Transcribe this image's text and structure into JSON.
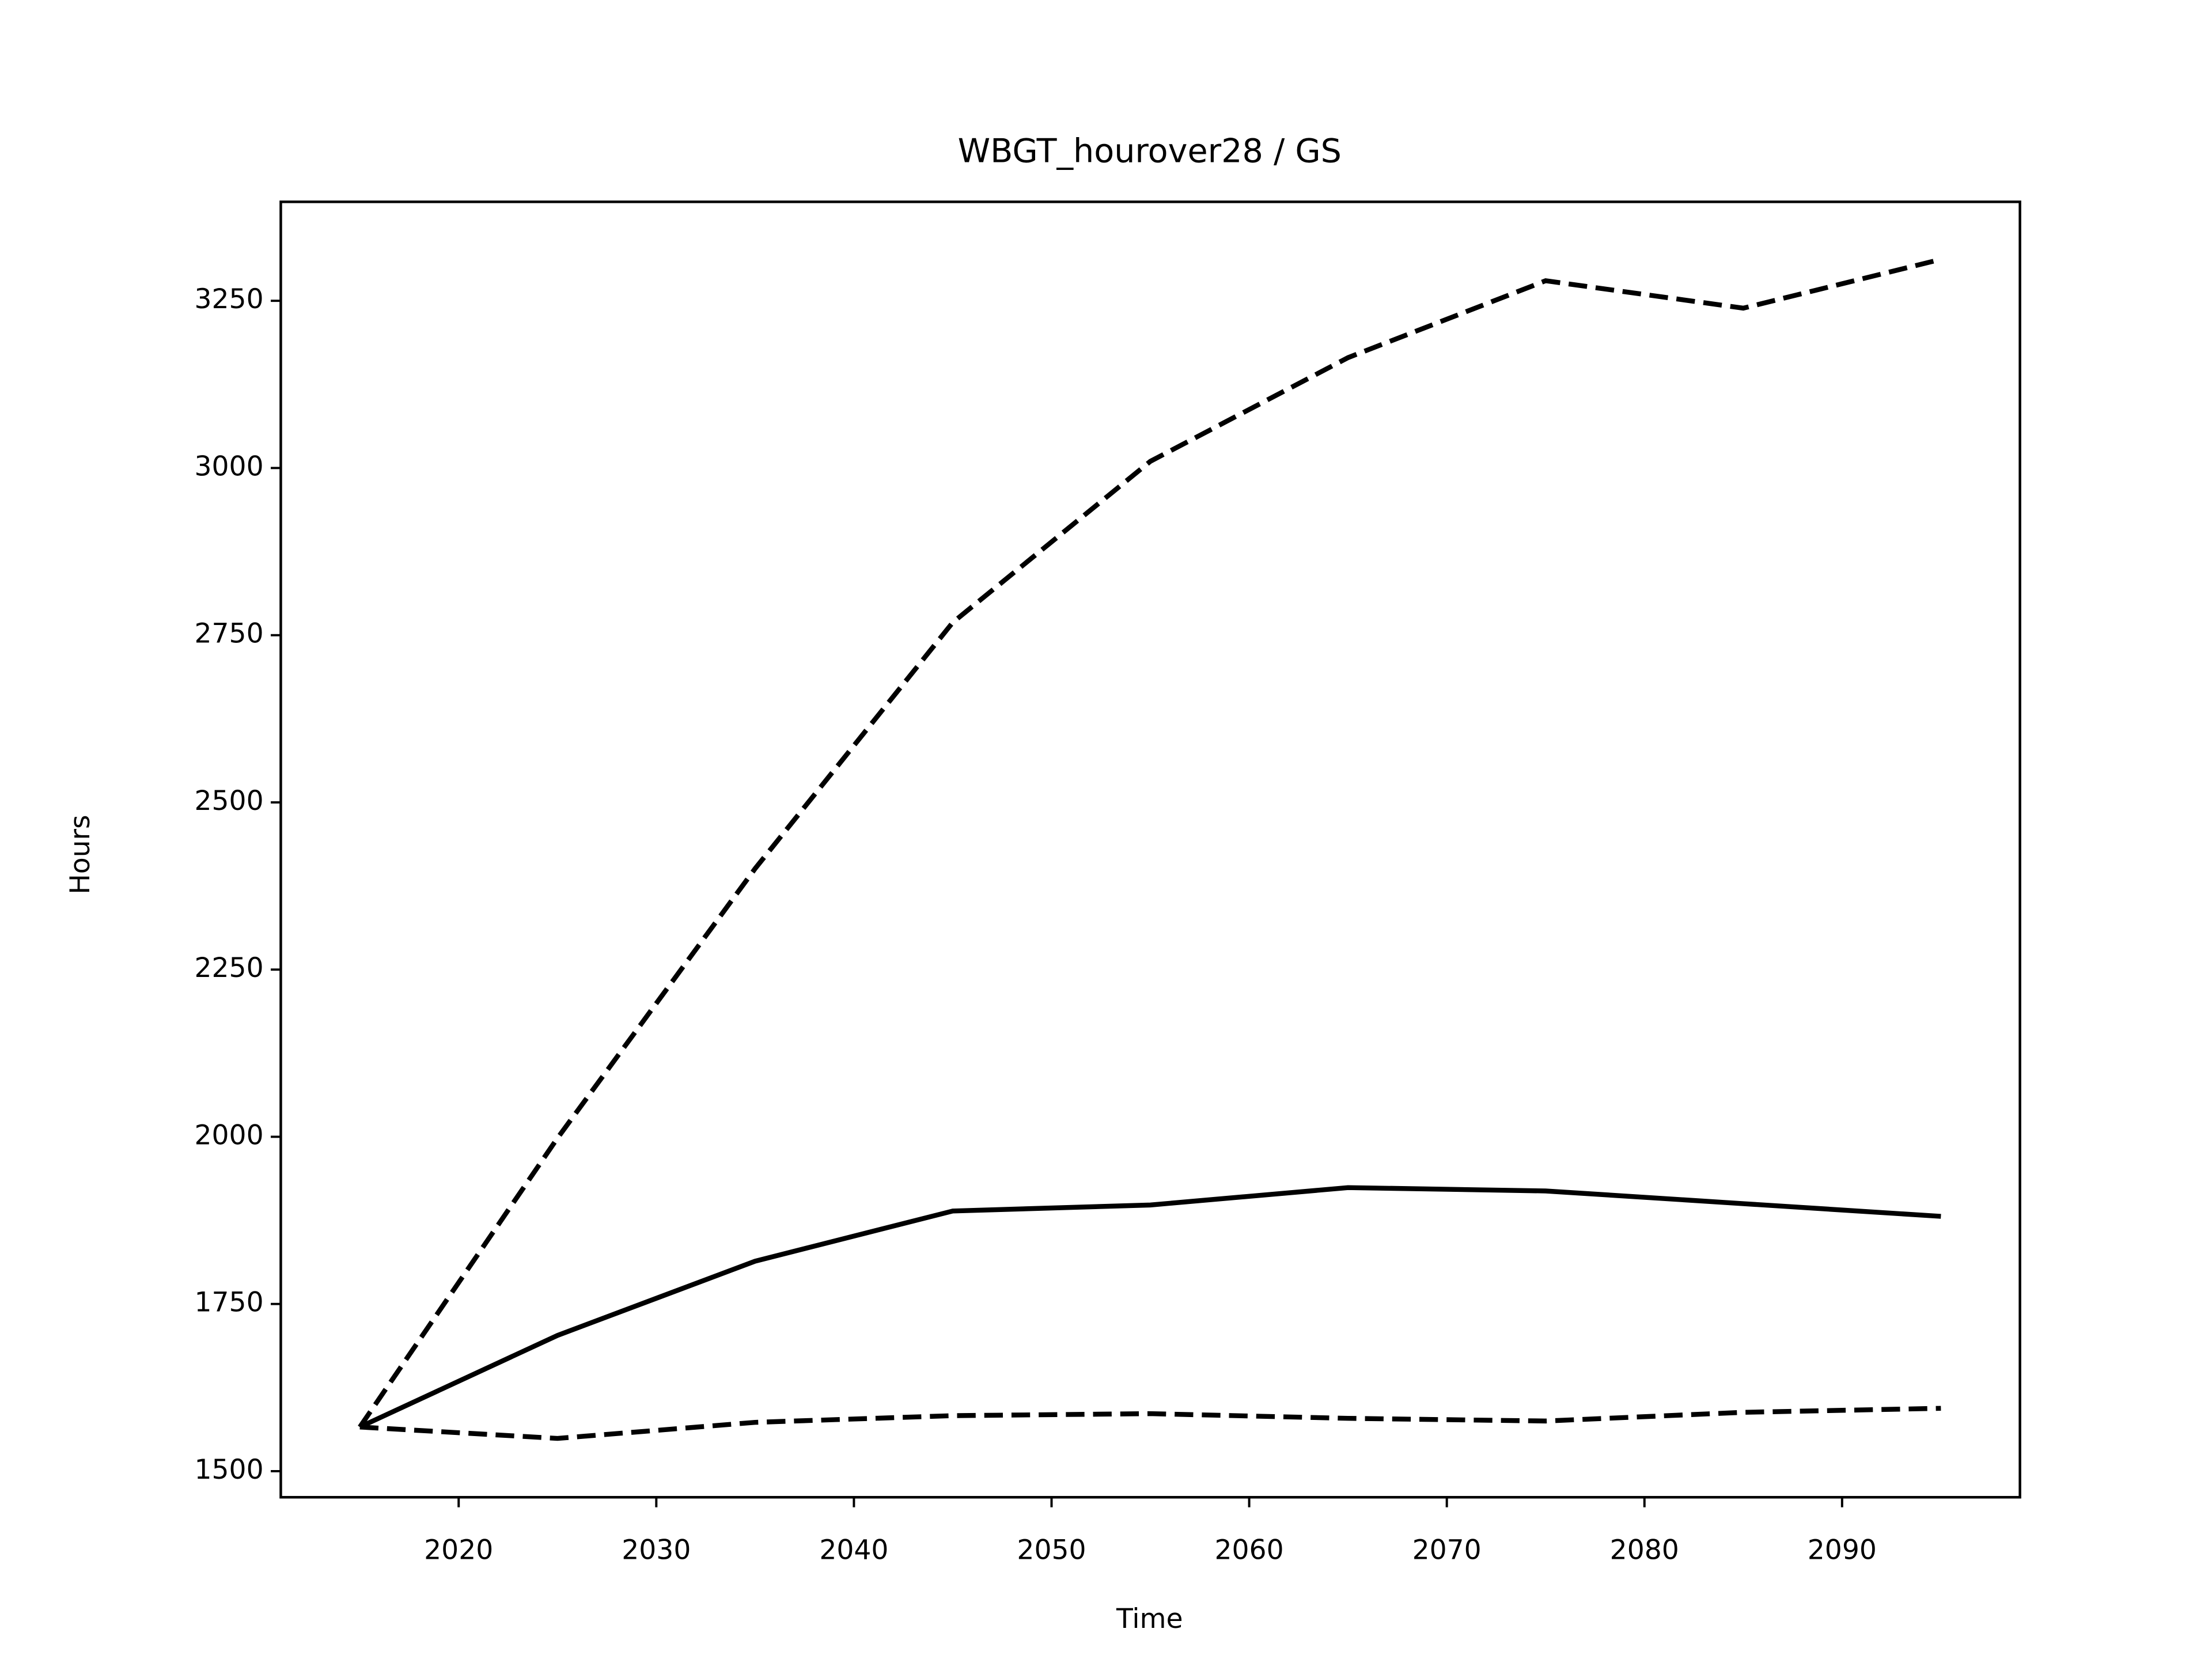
{
  "chart_data": {
    "type": "line",
    "title": "WBGT_hourover28 / GS",
    "xlabel": "Time",
    "ylabel": "Hours",
    "x": [
      2015,
      2025,
      2035,
      2045,
      2055,
      2065,
      2075,
      2085,
      2095
    ],
    "series": [
      {
        "color": "#000000",
        "linestyle": "dashed",
        "values": [
          1566,
          1998,
          2401,
          2769,
          3010,
          3165,
          3280,
          3239,
          3312
        ]
      },
      {
        "color": "#000000",
        "linestyle": "solid",
        "values": [
          1566,
          1703,
          1814,
          1889,
          1898,
          1924,
          1919,
          1900,
          1881
        ]
      },
      {
        "color": "#000000",
        "linestyle": "dashed",
        "values": [
          1566,
          1549,
          1573,
          1583,
          1586,
          1579,
          1575,
          1588,
          1594
        ]
      }
    ],
    "xlim": [
      2011,
      2099
    ],
    "xticks": [
      2020,
      2030,
      2040,
      2050,
      2060,
      2070,
      2080,
      2090
    ],
    "ylim": [
      1461,
      3398
    ],
    "yticks": [
      1500,
      1750,
      2000,
      2250,
      2500,
      2750,
      3000,
      3250
    ],
    "grid": false
  }
}
